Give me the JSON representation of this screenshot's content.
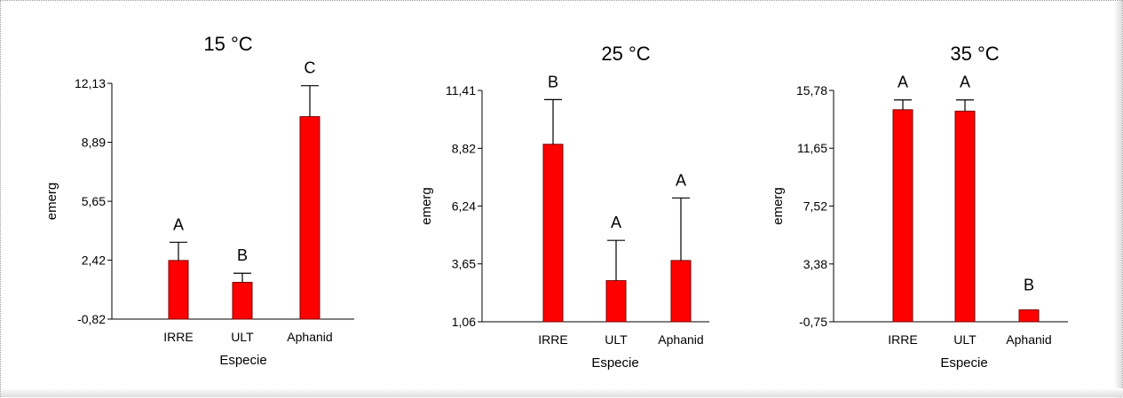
{
  "colors": {
    "bar": "#ff0000",
    "bar_edge": "#7a0000",
    "axis": "#000000"
  },
  "chart_data": [
    {
      "type": "bar",
      "title": "15 °C",
      "xlabel": "Especie",
      "ylabel": "emerg",
      "categories": [
        "IRRE",
        "ULT",
        "Aphanid"
      ],
      "values": [
        2.4,
        1.2,
        10.3
      ],
      "error_upper": [
        3.4,
        1.7,
        12.0
      ],
      "letters": [
        "A",
        "B",
        "C"
      ],
      "yticks": [
        "12,13",
        "8,89",
        "5,65",
        "2,42",
        "-0,82"
      ],
      "ytick_values": [
        12.13,
        8.89,
        5.65,
        2.42,
        -0.82
      ],
      "ylim": [
        -0.82,
        12.13
      ]
    },
    {
      "type": "bar",
      "title": "25 °C",
      "xlabel": "Especie",
      "ylabel": "emerg",
      "categories": [
        "IRRE",
        "ULT",
        "Aphanid"
      ],
      "values": [
        9.0,
        2.9,
        3.8
      ],
      "error_upper": [
        11.0,
        4.7,
        6.6
      ],
      "letters": [
        "B",
        "A",
        "A"
      ],
      "yticks": [
        "11,41",
        "8,82",
        "6,24",
        "3,65",
        "1,06"
      ],
      "ytick_values": [
        11.41,
        8.82,
        6.24,
        3.65,
        1.06
      ],
      "ylim": [
        1.06,
        11.41
      ]
    },
    {
      "type": "bar",
      "title": "35 °C",
      "xlabel": "Especie",
      "ylabel": "emerg",
      "categories": [
        "IRRE",
        "ULT",
        "Aphanid"
      ],
      "values": [
        14.4,
        14.3,
        0.1
      ],
      "error_upper": [
        15.1,
        15.1,
        0.1
      ],
      "letters": [
        "A",
        "A",
        "B"
      ],
      "yticks": [
        "15,78",
        "11,65",
        "7,52",
        "3,38",
        "-0,75"
      ],
      "ytick_values": [
        15.78,
        11.65,
        7.52,
        3.38,
        -0.75
      ],
      "ylim": [
        -0.75,
        15.78
      ]
    }
  ]
}
